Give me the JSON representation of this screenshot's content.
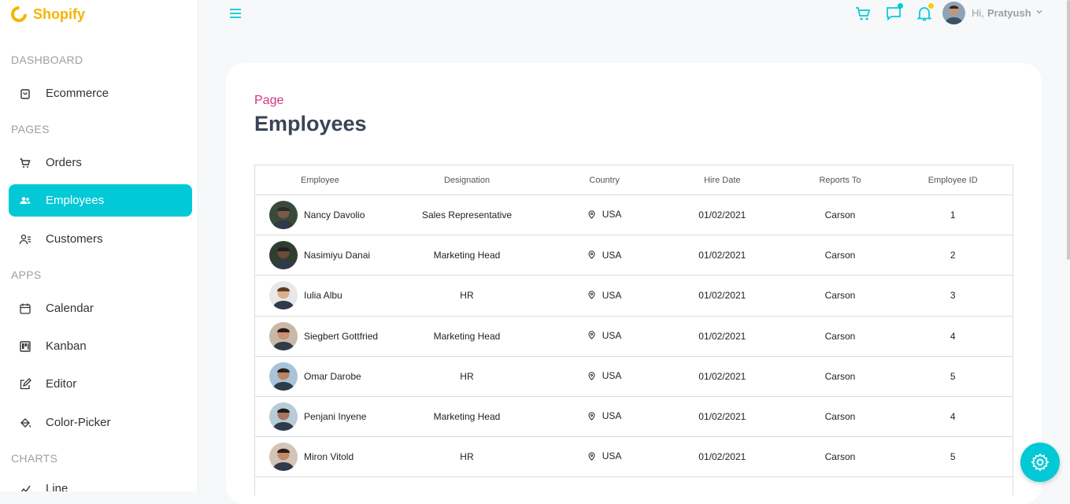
{
  "brand": {
    "name": "Shopify"
  },
  "sidebar": {
    "sections": [
      {
        "title": "DASHBOARD",
        "items": [
          {
            "label": "Ecommerce",
            "icon": "shopping-bag-icon"
          }
        ]
      },
      {
        "title": "PAGES",
        "items": [
          {
            "label": "Orders",
            "icon": "cart-icon"
          },
          {
            "label": "Employees",
            "icon": "people-icon",
            "active": true
          },
          {
            "label": "Customers",
            "icon": "customers-icon"
          }
        ]
      },
      {
        "title": "APPS",
        "items": [
          {
            "label": "Calendar",
            "icon": "calendar-icon"
          },
          {
            "label": "Kanban",
            "icon": "kanban-icon"
          },
          {
            "label": "Editor",
            "icon": "edit-icon"
          },
          {
            "label": "Color-Picker",
            "icon": "bucket-icon"
          }
        ]
      },
      {
        "title": "CHARTS",
        "items": [
          {
            "label": "Line",
            "icon": "line-chart-icon"
          }
        ]
      }
    ]
  },
  "header": {
    "greeting": "Hi,",
    "user": "Pratyush"
  },
  "page": {
    "category": "Page",
    "title": "Employees"
  },
  "table": {
    "columns": [
      "Employee",
      "Designation",
      "Country",
      "Hire Date",
      "Reports To",
      "Employee ID"
    ],
    "rows": [
      {
        "name": "Nancy Davolio",
        "designation": "Sales Representative",
        "country": "USA",
        "hire_date": "01/02/2021",
        "reports_to": "Carson",
        "id": "1"
      },
      {
        "name": "Nasimiyu Danai",
        "designation": "Marketing Head",
        "country": "USA",
        "hire_date": "01/02/2021",
        "reports_to": "Carson",
        "id": "2"
      },
      {
        "name": "Iulia Albu",
        "designation": "HR",
        "country": "USA",
        "hire_date": "01/02/2021",
        "reports_to": "Carson",
        "id": "3"
      },
      {
        "name": "Siegbert Gottfried",
        "designation": "Marketing Head",
        "country": "USA",
        "hire_date": "01/02/2021",
        "reports_to": "Carson",
        "id": "4"
      },
      {
        "name": "Omar Darobe",
        "designation": "HR",
        "country": "USA",
        "hire_date": "01/02/2021",
        "reports_to": "Carson",
        "id": "5"
      },
      {
        "name": "Penjani Inyene",
        "designation": "Marketing Head",
        "country": "USA",
        "hire_date": "01/02/2021",
        "reports_to": "Carson",
        "id": "4"
      },
      {
        "name": "Miron Vitold",
        "designation": "HR",
        "country": "USA",
        "hire_date": "01/02/2021",
        "reports_to": "Carson",
        "id": "5"
      }
    ]
  },
  "colors": {
    "accent": "#03c9d7",
    "brand": "#f5b400",
    "crumb": "#d63384",
    "chat_dot": "#03c9d7",
    "bell_dot": "#fec90f"
  }
}
